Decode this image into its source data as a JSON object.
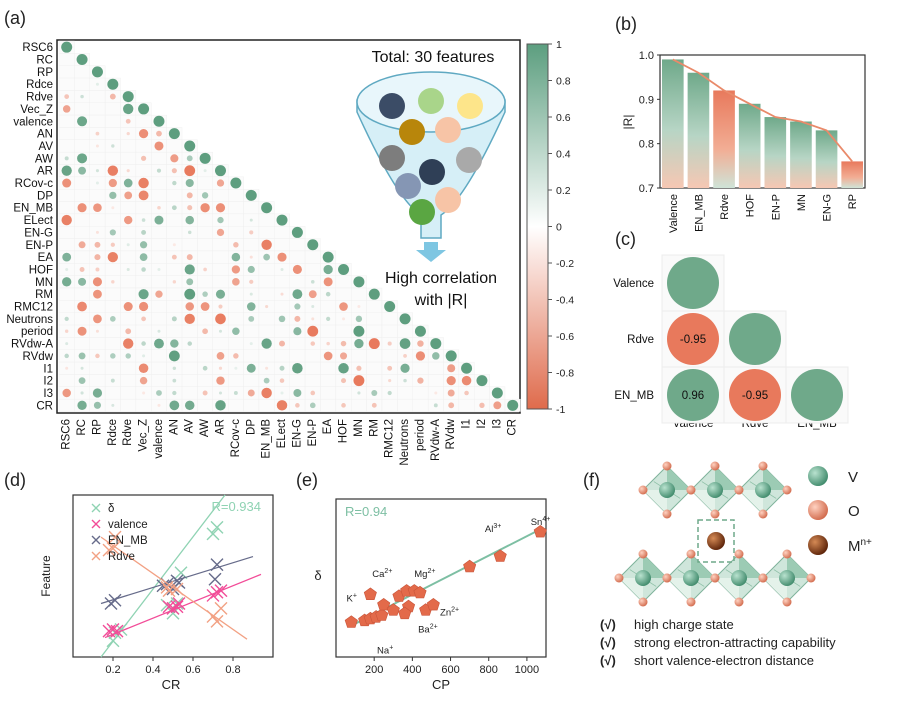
{
  "panels": {
    "a": "(a)",
    "b": "(b)",
    "c": "(c)",
    "d": "(d)",
    "e": "(e)",
    "f": "(f)"
  },
  "colors": {
    "positive": "#6fa98a",
    "negative": "#e8795c",
    "line_b": "#e98a6a",
    "delta": "#8fd3b3",
    "valence": "#f24c98",
    "en_mb": "#666b8a",
    "rdve": "#f2a184",
    "cp_marker": "#e36a4a",
    "cp_line": "#7dbfa3",
    "v_atom": "#5ea88a",
    "o_atom": "#e89279",
    "m_atom": "#8a3b12"
  },
  "chart_data": [
    {
      "panel": "a",
      "type": "heatmap",
      "features": [
        "RSC6",
        "RC",
        "RP",
        "Rdce",
        "Rdve",
        "Vec_Z",
        "valence",
        "AN",
        "AV",
        "AW",
        "AR",
        "RCov-c",
        "DP",
        "EN_MB",
        "ELect",
        "EN-G",
        "EN-P",
        "EA",
        "HOF",
        "MN",
        "RM",
        "RMC12",
        "Neutrons",
        "period",
        "RVdw-A",
        "RVdw",
        "I1",
        "I2",
        "I3",
        "CR"
      ],
      "colorbar": {
        "range": [
          -1,
          1
        ],
        "ticks": [
          "1",
          "0.8",
          "0.6",
          "0.4",
          "0.2",
          "0",
          "-0.2",
          "-0.4",
          "-0.6",
          "-0.8",
          "-1"
        ]
      },
      "annotation_title": "Total: 30 features",
      "annotation_bottom": [
        "High correlation",
        "with |R|"
      ]
    },
    {
      "panel": "b",
      "type": "bar",
      "categories": [
        "Valence",
        "EN_MB",
        "Rdve",
        "HOF",
        "EN-P",
        "MN",
        "EN-G",
        "RP"
      ],
      "values": [
        0.99,
        0.96,
        0.92,
        0.89,
        0.86,
        0.85,
        0.83,
        0.76
      ],
      "signs": [
        1,
        1,
        -1,
        1,
        1,
        1,
        1,
        -1
      ],
      "ylabel": "|R|",
      "ylim": [
        0.7,
        1.0
      ],
      "yticks": [
        "0.7",
        "0.8",
        "0.9",
        "1.0"
      ]
    },
    {
      "panel": "c",
      "type": "heatmap",
      "labels": [
        "Valence",
        "Rdve",
        "EN_MB"
      ],
      "cells": [
        {
          "row": 0,
          "col": 0,
          "value": 1,
          "label": ""
        },
        {
          "row": 1,
          "col": 0,
          "value": -0.95,
          "label": "-0.95"
        },
        {
          "row": 1,
          "col": 1,
          "value": 1,
          "label": ""
        },
        {
          "row": 2,
          "col": 0,
          "value": 0.96,
          "label": "0.96"
        },
        {
          "row": 2,
          "col": 1,
          "value": -0.95,
          "label": "-0.95"
        },
        {
          "row": 2,
          "col": 2,
          "value": 1,
          "label": ""
        }
      ]
    },
    {
      "panel": "d",
      "type": "scatter",
      "xlabel": "CR",
      "ylabel": "Feature",
      "xlim": [
        0,
        1.0
      ],
      "ylim": [
        0,
        1.0
      ],
      "xticks": [
        "0.2",
        "0.4",
        "0.6",
        "0.8"
      ],
      "annotation": "R=0.934",
      "series": [
        {
          "name": "δ",
          "key": "delta",
          "x": [
            0.2,
            0.21,
            0.24,
            0.47,
            0.5,
            0.5,
            0.52,
            0.54,
            0.7,
            0.72
          ],
          "y": [
            0.1,
            0.15,
            0.17,
            0.32,
            0.27,
            0.3,
            0.33,
            0.52,
            0.76,
            0.8
          ],
          "fit": [
            [
              0.14,
              0.0
            ],
            [
              0.76,
              1.0
            ]
          ]
        },
        {
          "name": "valence",
          "key": "valence",
          "x": [
            0.18,
            0.2,
            0.22,
            0.48,
            0.5,
            0.52,
            0.53,
            0.7,
            0.72,
            0.74
          ],
          "y": [
            0.16,
            0.17,
            0.16,
            0.31,
            0.3,
            0.31,
            0.33,
            0.38,
            0.4,
            0.41
          ],
          "fit": [
            [
              0.16,
              0.12
            ],
            [
              0.94,
              0.51
            ]
          ]
        },
        {
          "name": "EN_MB",
          "key": "en_mb",
          "x": [
            0.19,
            0.21,
            0.45,
            0.47,
            0.5,
            0.52,
            0.53,
            0.71,
            0.72
          ],
          "y": [
            0.33,
            0.35,
            0.44,
            0.45,
            0.42,
            0.47,
            0.46,
            0.48,
            0.57
          ],
          "fit": [
            [
              0.14,
              0.33
            ],
            [
              0.9,
              0.62
            ]
          ]
        },
        {
          "name": "Rdve",
          "key": "rdve",
          "x": [
            0.18,
            0.2,
            0.21,
            0.47,
            0.48,
            0.52,
            0.7,
            0.72,
            0.74
          ],
          "y": [
            0.66,
            0.67,
            0.74,
            0.43,
            0.41,
            0.42,
            0.25,
            0.22,
            0.3
          ],
          "fit": [
            [
              0.14,
              0.74
            ],
            [
              0.87,
              0.11
            ]
          ]
        }
      ]
    },
    {
      "panel": "e",
      "type": "scatter",
      "xlabel": "CP",
      "ylabel": "δ",
      "xlim": [
        0,
        1100
      ],
      "xticks": [
        "200",
        "400",
        "600",
        "800",
        "1000"
      ],
      "annotation": "R=0.94",
      "points": [
        [
          80,
          0.2
        ],
        [
          150,
          0.21
        ],
        [
          180,
          0.22
        ],
        [
          210,
          0.23
        ],
        [
          240,
          0.24
        ],
        [
          180,
          0.36
        ],
        [
          250,
          0.3
        ],
        [
          300,
          0.27
        ],
        [
          330,
          0.35
        ],
        [
          370,
          0.38
        ],
        [
          410,
          0.38
        ],
        [
          440,
          0.37
        ],
        [
          380,
          0.29
        ],
        [
          470,
          0.27
        ],
        [
          510,
          0.3
        ],
        [
          700,
          0.52
        ],
        [
          860,
          0.58
        ],
        [
          1070,
          0.72
        ],
        [
          360,
          0.25
        ]
      ],
      "fit": [
        [
          80,
          0.18
        ],
        [
          1080,
          0.74
        ]
      ],
      "ion_labels": [
        {
          "text": "Sn",
          "sup": "4+",
          "x": 1020,
          "y": 0.76
        },
        {
          "text": "Al",
          "sup": "3+",
          "x": 780,
          "y": 0.72
        },
        {
          "text": "Mg",
          "sup": "2+",
          "x": 410,
          "y": 0.46
        },
        {
          "text": "Ca",
          "sup": "2+",
          "x": 190,
          "y": 0.46
        },
        {
          "text": "K",
          "sup": "+",
          "x": 55,
          "y": 0.32
        },
        {
          "text": "Zn",
          "sup": "2+",
          "x": 545,
          "y": 0.24
        },
        {
          "text": "Ba",
          "sup": "2+",
          "x": 430,
          "y": 0.14
        },
        {
          "text": "Na",
          "sup": "+",
          "x": 215,
          "y": 0.02
        }
      ]
    }
  ],
  "structure": {
    "legend": [
      {
        "label": "V"
      },
      {
        "label": "O"
      },
      {
        "label": "M",
        "sup": "n+"
      }
    ],
    "bullets": [
      {
        "mark": "(√)",
        "text": "high charge state"
      },
      {
        "mark": "(√)",
        "text": "strong electron-attracting capability"
      },
      {
        "mark": "(√)",
        "text": "short valence-electron distance"
      }
    ]
  }
}
